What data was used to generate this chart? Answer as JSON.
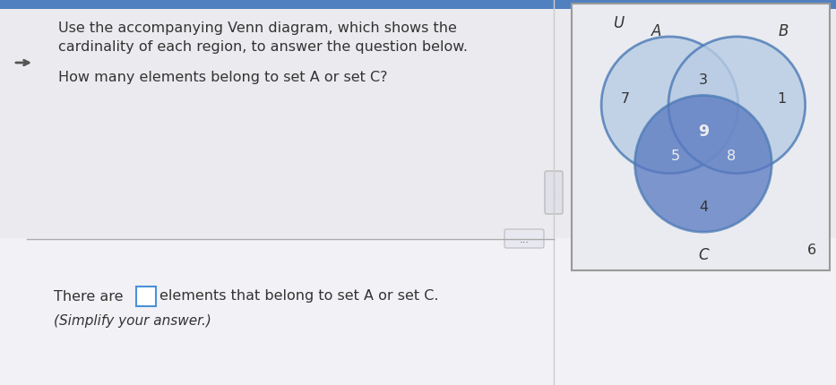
{
  "bg_top": "#e8e8ec",
  "bg_bottom": "#f0f0f4",
  "venn_bg": "#e8eaf0",
  "text_question_line1": "Use the accompanying Venn diagram, which shows the",
  "text_question_line2": "cardinality of each region, to answer the question below.",
  "text_question2": "How many elements belong to set A or set C?",
  "text_answer_line1": "There are",
  "text_answer_line2": "elements that belong to set A or set C.",
  "text_answer_line3": "(Simplify your answer.)",
  "venn_U": "U",
  "venn_A": "A",
  "venn_B": "B",
  "venn_C": "C",
  "venn_numbers": {
    "only_A": 7,
    "only_B": 1,
    "only_C": 4,
    "AB_only": 3,
    "AC_only": 5,
    "BC_only": 8,
    "ABC": 9,
    "outside": 6
  },
  "circle_outline": "#4a7ab5",
  "circle_A_fill": "#c8d8ee",
  "circle_B_fill": "#c8d8ee",
  "circle_C_fill": "#5878c0",
  "divider_color": "#aaaaaa",
  "text_color": "#333333",
  "answer_box_color": "#4a90d9"
}
